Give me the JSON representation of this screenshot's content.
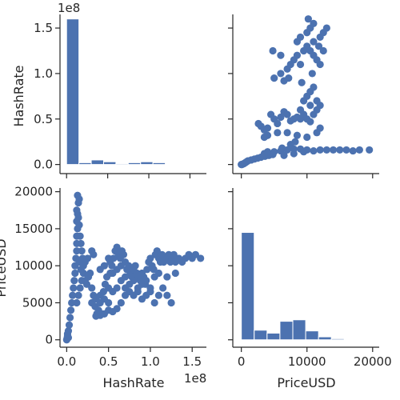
{
  "chart_data": {
    "type": "scatter",
    "kind": "pairplot",
    "variables": [
      "HashRate",
      "PriceUSD"
    ],
    "color": "#4c72b0",
    "grid": false,
    "offset_label": "1e8",
    "panels": [
      {
        "id": "hashrate-hist",
        "type": "bar",
        "xlabel": "",
        "ylabel": "HashRate",
        "y_offset_label": "1e8",
        "ylim": [
          -0.1,
          1.65
        ],
        "yticks": [
          0.0,
          0.5,
          1.0,
          1.5
        ],
        "ytick_labels": [
          "0.0",
          "0.5",
          "1.0",
          "1.5"
        ],
        "bin_edges": [
          0,
          1.5,
          3.0,
          4.5,
          6.0,
          7.5,
          9.0,
          10.5,
          12.0,
          13.5,
          15.0
        ],
        "counts": [
          1.6,
          0.02,
          0.05,
          0.03,
          0.01,
          0.02,
          0.03,
          0.02,
          0.0,
          0.0
        ],
        "xlim": [
          -0.8,
          17.0
        ]
      },
      {
        "id": "price-vs-hashrate",
        "type": "scatter",
        "xlabel": "",
        "ylabel": "",
        "xlim": [
          -1300,
          21000
        ],
        "ylim": [
          -0.1,
          1.65
        ],
        "points": [
          [
            0,
            0.0
          ],
          [
            100,
            0.0
          ],
          [
            200,
            0.005
          ],
          [
            400,
            0.01
          ],
          [
            600,
            0.02
          ],
          [
            800,
            0.03
          ],
          [
            1000,
            0.04
          ],
          [
            1500,
            0.05
          ],
          [
            2000,
            0.06
          ],
          [
            2500,
            0.07
          ],
          [
            3000,
            0.08
          ],
          [
            3600,
            0.09
          ],
          [
            4200,
            0.1
          ],
          [
            4800,
            0.11
          ],
          [
            3500,
            0.12
          ],
          [
            4000,
            0.14
          ],
          [
            5000,
            0.14
          ],
          [
            6000,
            0.15
          ],
          [
            7000,
            0.16
          ],
          [
            8000,
            0.17
          ],
          [
            9000,
            0.17
          ],
          [
            10000,
            0.16
          ],
          [
            11000,
            0.15
          ],
          [
            12000,
            0.16
          ],
          [
            13000,
            0.16
          ],
          [
            14000,
            0.16
          ],
          [
            15000,
            0.16
          ],
          [
            16000,
            0.16
          ],
          [
            17000,
            0.15
          ],
          [
            18000,
            0.16
          ],
          [
            19500,
            0.16
          ],
          [
            6500,
            0.1
          ],
          [
            8000,
            0.12
          ],
          [
            9500,
            0.14
          ],
          [
            6200,
            0.18
          ],
          [
            7500,
            0.22
          ],
          [
            8200,
            0.25
          ],
          [
            2600,
            0.45
          ],
          [
            3000,
            0.42
          ],
          [
            3500,
            0.38
          ],
          [
            4000,
            0.4
          ],
          [
            4500,
            0.55
          ],
          [
            5000,
            0.5
          ],
          [
            5500,
            0.45
          ],
          [
            6000,
            0.52
          ],
          [
            6500,
            0.58
          ],
          [
            7000,
            0.55
          ],
          [
            7500,
            0.48
          ],
          [
            8000,
            0.5
          ],
          [
            8500,
            0.52
          ],
          [
            9000,
            0.5
          ],
          [
            9500,
            0.55
          ],
          [
            10000,
            0.5
          ],
          [
            10500,
            0.47
          ],
          [
            11000,
            0.55
          ],
          [
            11500,
            0.6
          ],
          [
            3500,
            0.3
          ],
          [
            4000,
            0.32
          ],
          [
            5500,
            0.35
          ],
          [
            7000,
            0.35
          ],
          [
            8500,
            0.32
          ],
          [
            10000,
            0.3
          ],
          [
            11500,
            0.35
          ],
          [
            12000,
            0.4
          ],
          [
            9500,
            0.7
          ],
          [
            10000,
            0.75
          ],
          [
            10500,
            0.8
          ],
          [
            11000,
            0.85
          ],
          [
            11500,
            0.7
          ],
          [
            12000,
            0.65
          ],
          [
            9000,
            0.6
          ],
          [
            10500,
            0.65
          ],
          [
            5000,
            0.95
          ],
          [
            6000,
            1.0
          ],
          [
            7000,
            1.05
          ],
          [
            7500,
            1.1
          ],
          [
            8000,
            1.15
          ],
          [
            8500,
            1.2
          ],
          [
            9000,
            1.1
          ],
          [
            9500,
            1.25
          ],
          [
            10000,
            1.3
          ],
          [
            10500,
            1.25
          ],
          [
            11000,
            1.2
          ],
          [
            11500,
            1.15
          ],
          [
            12000,
            1.1
          ],
          [
            6500,
            0.92
          ],
          [
            7200,
            0.95
          ],
          [
            9200,
            0.9
          ],
          [
            10800,
            1.0
          ],
          [
            4800,
            1.25
          ],
          [
            6000,
            1.2
          ],
          [
            8500,
            1.35
          ],
          [
            9000,
            1.4
          ],
          [
            10000,
            1.45
          ],
          [
            10500,
            1.5
          ],
          [
            11000,
            1.55
          ],
          [
            10200,
            1.6
          ],
          [
            12000,
            1.4
          ],
          [
            11800,
            1.3
          ],
          [
            12500,
            1.25
          ],
          [
            13000,
            1.5
          ],
          [
            12500,
            1.45
          ],
          [
            11000,
            1.35
          ]
        ]
      },
      {
        "id": "hashrate-vs-price",
        "type": "scatter",
        "xlabel": "HashRate",
        "ylabel": "PriceUSD",
        "x_offset_label": "1e8",
        "xlim": [
          -0.08,
          1.67
        ],
        "xticks": [
          0.0,
          0.5,
          1.0,
          1.5
        ],
        "xtick_labels": [
          "0.0",
          "0.5",
          "1.0",
          "1.5"
        ],
        "ylim": [
          -1000,
          20500
        ],
        "yticks": [
          0,
          5000,
          10000,
          15000,
          20000
        ],
        "ytick_labels": [
          "0",
          "5000",
          "10000",
          "15000",
          "20000"
        ],
        "points": [
          [
            0.0,
            0
          ],
          [
            0.005,
            200
          ],
          [
            0.01,
            500
          ],
          [
            0.01,
            800
          ],
          [
            0.02,
            1200
          ],
          [
            0.02,
            300
          ],
          [
            0.03,
            2000
          ],
          [
            0.04,
            3000
          ],
          [
            0.05,
            4000
          ],
          [
            0.06,
            5000
          ],
          [
            0.07,
            6000
          ],
          [
            0.08,
            7000
          ],
          [
            0.09,
            8000
          ],
          [
            0.1,
            9000
          ],
          [
            0.1,
            10000
          ],
          [
            0.11,
            11000
          ],
          [
            0.12,
            12000
          ],
          [
            0.12,
            13000
          ],
          [
            0.12,
            14000
          ],
          [
            0.13,
            15000
          ],
          [
            0.12,
            16000
          ],
          [
            0.13,
            17000
          ],
          [
            0.12,
            17500
          ],
          [
            0.14,
            18500
          ],
          [
            0.13,
            19500
          ],
          [
            0.15,
            19000
          ],
          [
            0.14,
            16500
          ],
          [
            0.15,
            15500
          ],
          [
            0.16,
            14000
          ],
          [
            0.17,
            13000
          ],
          [
            0.18,
            12000
          ],
          [
            0.19,
            11000
          ],
          [
            0.2,
            10000
          ],
          [
            0.2,
            9000
          ],
          [
            0.22,
            8000
          ],
          [
            0.24,
            7500
          ],
          [
            0.26,
            8500
          ],
          [
            0.28,
            9000
          ],
          [
            0.3,
            7000
          ],
          [
            0.32,
            6000
          ],
          [
            0.34,
            4500
          ],
          [
            0.36,
            3500
          ],
          [
            0.38,
            4000
          ],
          [
            0.4,
            5000
          ],
          [
            0.42,
            3500
          ],
          [
            0.44,
            6500
          ],
          [
            0.46,
            7500
          ],
          [
            0.48,
            8500
          ],
          [
            0.5,
            7000
          ],
          [
            0.52,
            9000
          ],
          [
            0.54,
            10000
          ],
          [
            0.56,
            11000
          ],
          [
            0.58,
            12000
          ],
          [
            0.6,
            12500
          ],
          [
            0.62,
            11500
          ],
          [
            0.64,
            11000
          ],
          [
            0.66,
            12000
          ],
          [
            0.68,
            11500
          ],
          [
            0.7,
            10500
          ],
          [
            0.72,
            9500
          ],
          [
            0.74,
            10000
          ],
          [
            0.76,
            9000
          ],
          [
            0.78,
            8500
          ],
          [
            0.8,
            9500
          ],
          [
            0.82,
            10000
          ],
          [
            0.84,
            9000
          ],
          [
            0.86,
            8500
          ],
          [
            0.88,
            8000
          ],
          [
            0.9,
            9000
          ],
          [
            0.92,
            8500
          ],
          [
            0.94,
            7500
          ],
          [
            0.96,
            9500
          ],
          [
            0.98,
            10500
          ],
          [
            1.0,
            11000
          ],
          [
            1.02,
            10000
          ],
          [
            1.04,
            9500
          ],
          [
            1.06,
            11500
          ],
          [
            1.08,
            12000
          ],
          [
            1.1,
            11000
          ],
          [
            1.12,
            10500
          ],
          [
            1.14,
            11500
          ],
          [
            1.16,
            10500
          ],
          [
            1.18,
            11000
          ],
          [
            1.2,
            11000
          ],
          [
            1.22,
            11500
          ],
          [
            1.24,
            10500
          ],
          [
            1.26,
            11000
          ],
          [
            1.28,
            11500
          ],
          [
            1.3,
            10500
          ],
          [
            1.34,
            11000
          ],
          [
            1.38,
            10500
          ],
          [
            1.42,
            11000
          ],
          [
            1.46,
            11500
          ],
          [
            1.5,
            11000
          ],
          [
            1.54,
            11500
          ],
          [
            1.6,
            11000
          ],
          [
            0.55,
            9000
          ],
          [
            0.6,
            9500
          ],
          [
            0.65,
            10000
          ],
          [
            0.7,
            8500
          ],
          [
            0.75,
            7500
          ],
          [
            0.8,
            8000
          ],
          [
            0.85,
            7000
          ],
          [
            0.9,
            7500
          ],
          [
            0.95,
            8000
          ],
          [
            1.0,
            7000
          ],
          [
            1.05,
            8500
          ],
          [
            1.1,
            9000
          ],
          [
            1.2,
            8500
          ],
          [
            1.3,
            9000
          ],
          [
            0.3,
            5000
          ],
          [
            0.35,
            5500
          ],
          [
            0.4,
            6000
          ],
          [
            0.45,
            5500
          ],
          [
            0.5,
            5000
          ],
          [
            0.55,
            6500
          ],
          [
            0.6,
            7000
          ],
          [
            0.65,
            8000
          ],
          [
            0.7,
            7000
          ],
          [
            0.75,
            6500
          ],
          [
            0.8,
            6000
          ],
          [
            0.85,
            6500
          ],
          [
            0.9,
            5500
          ],
          [
            0.95,
            6000
          ],
          [
            1.0,
            6500
          ],
          [
            1.05,
            5000
          ],
          [
            1.1,
            6000
          ],
          [
            1.15,
            7000
          ],
          [
            1.2,
            6000
          ],
          [
            1.25,
            5000
          ],
          [
            0.35,
            3200
          ],
          [
            0.4,
            3300
          ],
          [
            0.45,
            3500
          ],
          [
            0.5,
            4000
          ],
          [
            0.55,
            3800
          ],
          [
            0.6,
            4200
          ],
          [
            0.65,
            5000
          ],
          [
            0.7,
            6000
          ],
          [
            0.25,
            11000
          ],
          [
            0.3,
            12000
          ],
          [
            0.32,
            11500
          ],
          [
            0.22,
            10500
          ],
          [
            0.5,
            11000
          ],
          [
            0.52,
            10500
          ],
          [
            0.45,
            10000
          ],
          [
            0.4,
            9500
          ],
          [
            0.12,
            5000
          ],
          [
            0.14,
            6000
          ],
          [
            0.16,
            7000
          ],
          [
            0.18,
            8000
          ],
          [
            0.15,
            10500
          ],
          [
            0.17,
            9500
          ]
        ]
      },
      {
        "id": "price-hist",
        "type": "bar",
        "xlabel": "PriceUSD",
        "ylabel": "",
        "xlim": [
          -1300,
          21000
        ],
        "xticks": [
          0,
          10000,
          20000
        ],
        "xtick_labels": [
          "0",
          "10000",
          "20000"
        ],
        "ylim": [
          -1000,
          20500
        ],
        "bin_edges": [
          0,
          1960,
          3920,
          5880,
          7840,
          9800,
          11760,
          13720,
          15680,
          17640,
          19600
        ],
        "counts": [
          14500,
          1300,
          900,
          2500,
          2700,
          1200,
          400,
          150,
          100,
          100
        ]
      }
    ]
  }
}
